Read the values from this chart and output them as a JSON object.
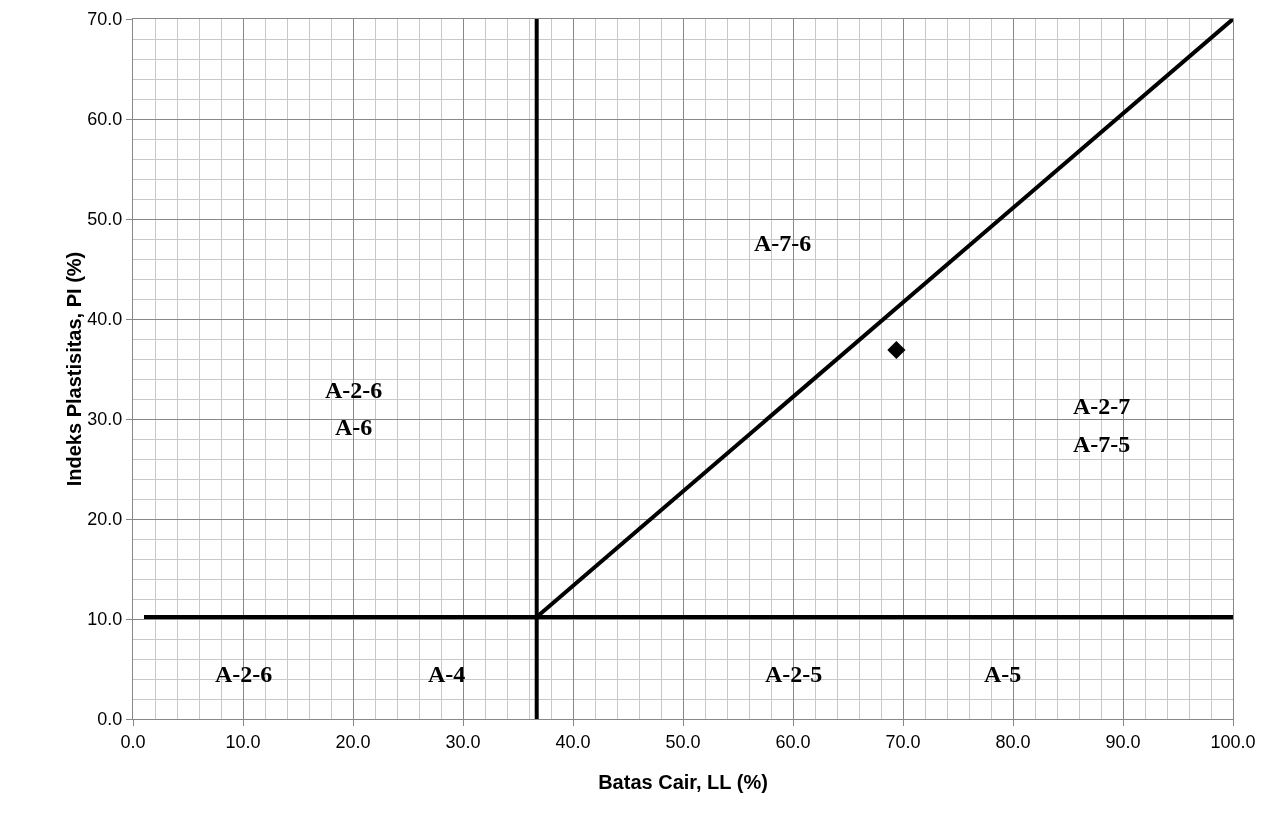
{
  "chart_data": {
    "type": "line",
    "xlabel": "Batas Cair, LL (%)",
    "ylabel": "Indeks Plastisitas, PI (%)",
    "series": [
      {
        "color": "#000000",
        "x": [
          1,
          100
        ],
        "values": [
          10.2,
          10.2
        ]
      },
      {
        "color": "#000000",
        "x": [
          36.7,
          36.7
        ],
        "values": [
          0,
          70
        ]
      },
      {
        "color": "#000000",
        "x": [
          36.7,
          100
        ],
        "values": [
          10.2,
          70
        ]
      },
      {
        "type": "scatter",
        "color": "#000000",
        "marker": "diamond",
        "x": [
          69.4
        ],
        "values": [
          36.9
        ]
      }
    ],
    "xlim": [
      0,
      100
    ],
    "ylim": [
      0,
      70
    ],
    "xticks": [
      {
        "value": 0,
        "label": "0.0"
      },
      {
        "value": 10,
        "label": "10.0"
      },
      {
        "value": 20,
        "label": "20.0"
      },
      {
        "value": 30,
        "label": "30.0"
      },
      {
        "value": 40,
        "label": "40.0"
      },
      {
        "value": 50,
        "label": "50.0"
      },
      {
        "value": 60,
        "label": "60.0"
      },
      {
        "value": 70,
        "label": "70.0"
      },
      {
        "value": 80,
        "label": "80.0"
      },
      {
        "value": 90,
        "label": "90.0"
      },
      {
        "value": 100,
        "label": "100.0"
      }
    ],
    "yticks": [
      {
        "value": 0,
        "label": "0.0"
      },
      {
        "value": 10,
        "label": "10.0"
      },
      {
        "value": 20,
        "label": "20.0"
      },
      {
        "value": 30,
        "label": "30.0"
      },
      {
        "value": 40,
        "label": "40.0"
      },
      {
        "value": 50,
        "label": "50.0"
      },
      {
        "value": 60,
        "label": "60.0"
      },
      {
        "value": 70,
        "label": "70.0"
      }
    ],
    "grid": true,
    "line_style": "solid",
    "annotations": [
      "A-7-6",
      "A-2-6",
      "A-6",
      "A-2-7",
      "A-7-5",
      "A-2-6",
      "A-4",
      "A-2-5",
      "A-5"
    ]
  }
}
